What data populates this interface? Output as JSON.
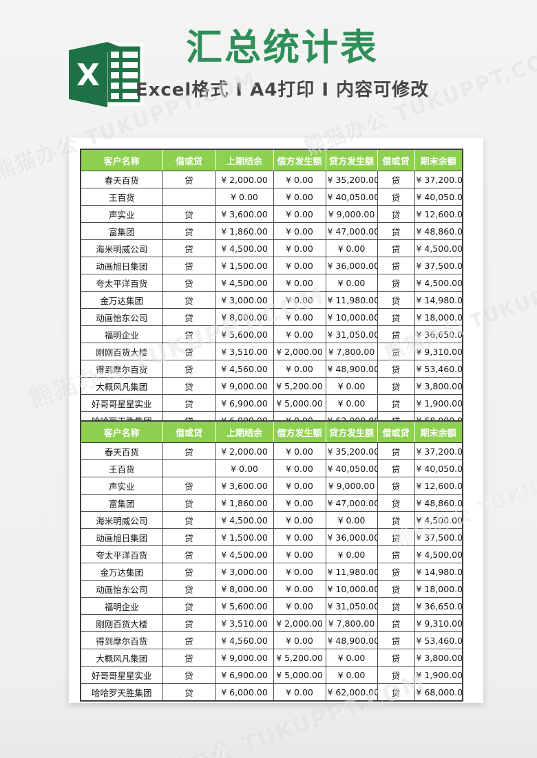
{
  "page": {
    "title": "汇总统计表",
    "subtitle": "Excel格式 Ⅰ A4打印 Ⅰ 内容可修改",
    "watermark": "熊猫办公 TUKUPPT.COM",
    "logo_letter": "X"
  },
  "colors": {
    "title_green": "#2e8f58",
    "logo_cover_green": "#1e7145",
    "logo_sheet_green": "#217346",
    "table_header_green": "#8ed150",
    "subtitle_gray": "#454545",
    "border_dark": "#3f3f3f",
    "page_background": "#f1f1f0",
    "paper_white": "#ffffff"
  },
  "table": {
    "columns": [
      "客户名称",
      "借或贷",
      "上期结余",
      "借方发生额",
      "贷方发生额",
      "借或贷",
      "期末余额"
    ],
    "rows": [
      [
        "春天百货",
        "贷",
        "¥ 2,000.00",
        "¥ 0.00",
        "¥ 35,200.00",
        "贷",
        "¥ 37,200.00"
      ],
      [
        "王百货",
        "",
        "¥ 0.00",
        "¥ 0.00",
        "¥ 40,050.00",
        "贷",
        "¥ 40,050.00"
      ],
      [
        "声实业",
        "贷",
        "¥ 3,600.00",
        "¥ 0.00",
        "¥ 9,000.00",
        "贷",
        "¥ 12,600.00"
      ],
      [
        "富集团",
        "贷",
        "¥ 1,860.00",
        "¥ 0.00",
        "¥ 47,000.00",
        "贷",
        "¥ 48,860.00"
      ],
      [
        "海米明威公司",
        "贷",
        "¥ 4,500.00",
        "¥ 0.00",
        "¥ 0.00",
        "贷",
        "¥ 4,500.00"
      ],
      [
        "动画旭日集团",
        "贷",
        "¥ 1,500.00",
        "¥ 0.00",
        "¥ 36,000.00",
        "贷",
        "¥ 37,500.00"
      ],
      [
        "夸太平洋百货",
        "贷",
        "¥ 4,500.00",
        "¥ 0.00",
        "¥ 0.00",
        "贷",
        "¥ 4,500.00"
      ],
      [
        "金万达集团",
        "贷",
        "¥ 3,000.00",
        "¥ 0.00",
        "¥ 11,980.00",
        "贷",
        "¥ 14,980.00"
      ],
      [
        "动画怡东公司",
        "贷",
        "¥ 8,000.00",
        "¥ 0.00",
        "¥ 10,000.00",
        "贷",
        "¥ 18,000.00"
      ],
      [
        "福明企业",
        "贷",
        "¥ 5,600.00",
        "¥ 0.00",
        "¥ 31,050.00",
        "贷",
        "¥ 36,650.00"
      ],
      [
        "刚刚百货大楼",
        "贷",
        "¥ 3,510.00",
        "¥ 2,000.00",
        "¥ 7,800.00",
        "贷",
        "¥ 9,310.00"
      ],
      [
        "得到摩尔百货",
        "贷",
        "¥ 4,560.00",
        "¥ 0.00",
        "¥ 48,900.00",
        "贷",
        "¥ 53,460.00"
      ],
      [
        "大概风凡集团",
        "贷",
        "¥ 9,000.00",
        "¥ 5,200.00",
        "¥ 0.00",
        "贷",
        "¥ 3,800.00"
      ],
      [
        "好哥哥星星实业",
        "贷",
        "¥ 6,900.00",
        "¥ 5,000.00",
        "¥ 0.00",
        "贷",
        "¥ 1,900.00"
      ],
      [
        "哈哈罗天胜集团",
        "贷",
        "¥ 6,000.00",
        "¥ 0.00",
        "¥ 62,000.00",
        "贷",
        "¥ 68,000.00"
      ]
    ]
  }
}
